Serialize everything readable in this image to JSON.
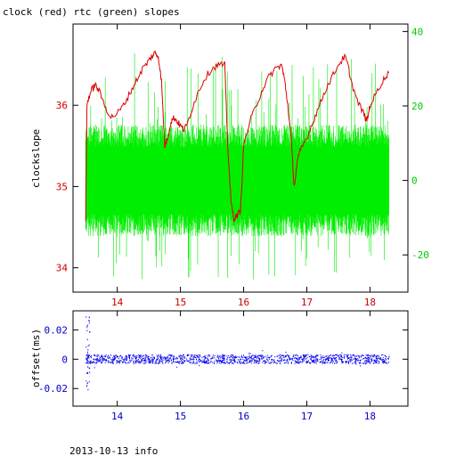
{
  "chart_data": [
    {
      "type": "line",
      "title": "clock (red) rtc (green) slopes",
      "ylabel": "clockslope",
      "xlim": [
        13.3,
        18.6
      ],
      "ylim_left": [
        33.7,
        37.0
      ],
      "ylim_right": [
        -30,
        42
      ],
      "grid": false,
      "x_ticks": [
        14,
        15,
        16,
        17,
        18
      ],
      "y_left_ticks": [
        34,
        35,
        36
      ],
      "y_right_ticks": [
        -20,
        0,
        20,
        40
      ],
      "colors": {
        "clock": "#dd0000",
        "rtc": "#00ee00"
      },
      "series": [
        {
          "name": "clock (red)",
          "axis": "left",
          "x": [
            13.5,
            13.52,
            13.55,
            13.6,
            13.65,
            13.7,
            13.8,
            13.9,
            14.0,
            14.1,
            14.2,
            14.3,
            14.4,
            14.5,
            14.55,
            14.6,
            14.65,
            14.7,
            14.75,
            14.8,
            14.85,
            14.9,
            14.95,
            15.0,
            15.05,
            15.1,
            15.2,
            15.3,
            15.4,
            15.5,
            15.6,
            15.7,
            15.75,
            15.8,
            15.85,
            15.9,
            15.95,
            16.0,
            16.1,
            16.2,
            16.3,
            16.4,
            16.5,
            16.6,
            16.65,
            16.7,
            16.75,
            16.8,
            16.85,
            16.9,
            17.0,
            17.1,
            17.2,
            17.3,
            17.4,
            17.5,
            17.6,
            17.65,
            17.7,
            17.8,
            17.9,
            17.95,
            18.0,
            18.1,
            18.2,
            18.3
          ],
          "values": [
            34.6,
            36.0,
            36.1,
            36.2,
            36.25,
            36.2,
            36.0,
            35.85,
            35.9,
            36.0,
            36.15,
            36.3,
            36.45,
            36.55,
            36.6,
            36.65,
            36.6,
            36.3,
            35.5,
            35.6,
            35.8,
            35.85,
            35.8,
            35.75,
            35.7,
            35.75,
            36.0,
            36.2,
            36.35,
            36.45,
            36.5,
            36.5,
            35.5,
            34.8,
            34.6,
            34.65,
            34.7,
            35.5,
            35.8,
            36.0,
            36.2,
            36.35,
            36.45,
            36.5,
            36.3,
            36.0,
            35.6,
            35.0,
            35.3,
            35.45,
            35.6,
            35.8,
            36.0,
            36.2,
            36.35,
            36.5,
            36.6,
            36.5,
            36.3,
            36.05,
            35.9,
            35.8,
            36.0,
            36.15,
            36.3,
            36.4
          ]
        },
        {
          "name": "rtc (green)",
          "axis": "right",
          "x_start": 13.5,
          "x_end": 18.3,
          "band_min": -15,
          "band_max": 15,
          "spike_min": -27,
          "spike_max": 35
        }
      ]
    },
    {
      "type": "scatter",
      "ylabel": "offset(ms)",
      "xlim": [
        13.3,
        18.6
      ],
      "ylim": [
        -0.032,
        0.033
      ],
      "grid": false,
      "x_ticks": [
        14,
        15,
        16,
        17,
        18
      ],
      "y_ticks": [
        -0.02,
        0,
        0.02
      ],
      "colors": {
        "offset": "#0000ee"
      },
      "series": [
        {
          "name": "offset",
          "x_start": 13.5,
          "x_end": 18.3,
          "band": 0.003,
          "outlier_max": 0.03,
          "outlier_min": -0.022
        }
      ]
    }
  ],
  "footer": "2013-10-13 info"
}
